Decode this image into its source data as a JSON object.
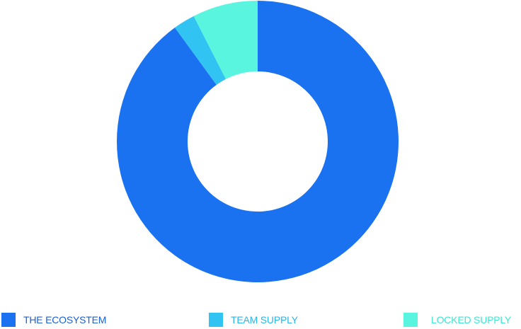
{
  "chart_data": {
    "type": "pie",
    "variant": "donut",
    "title": "",
    "legend_position": "bottom",
    "series": [
      {
        "name": "THE ECOSYSTEM",
        "value": 90.0,
        "color": "#1b72f0",
        "label_color": "#1b5fd6"
      },
      {
        "name": "TEAM SUPPLY",
        "value": 2.5,
        "color": "#31c3f2",
        "label_color": "#28b6ea"
      },
      {
        "name": "LOCKED SUPPLY",
        "value": 7.5,
        "color": "#5af5df",
        "label_color": "#3fe6cf"
      }
    ]
  }
}
